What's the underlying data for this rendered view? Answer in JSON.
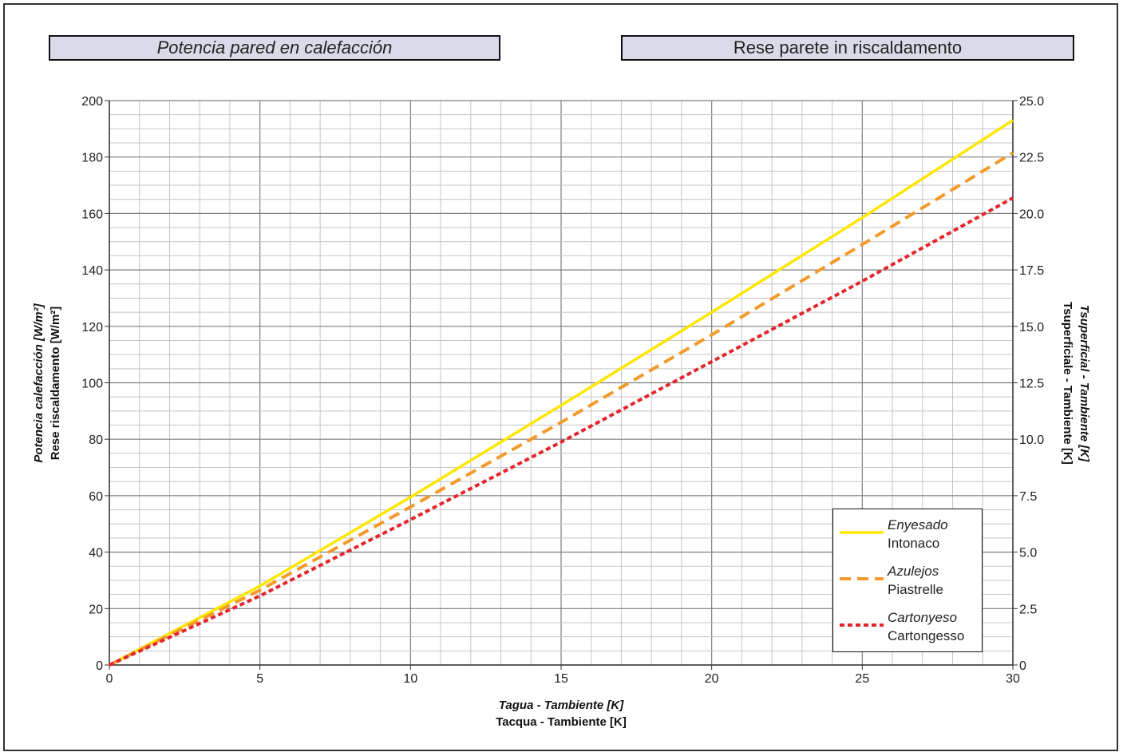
{
  "titles": {
    "left": "Potencia pared en calefacción",
    "right": "Rese parete in riscaldamento"
  },
  "axes": {
    "x_label_es": "Tagua - Tambiente [K]",
    "x_label_it": "Tacqua - Tambiente [K]",
    "y_left_label_es": "Potencia calefacción [W/m²]",
    "y_left_label_it": "Rese riscaldamento [W/m²]",
    "y_right_label_es": "Tsuperficial - Tambiente [K]",
    "y_right_label_it": "Tsuperficiale - Tambiente [K]"
  },
  "colors": {
    "enyesado": "#ffe600",
    "azulejos": "#f39a2b",
    "cartonyeso": "#e5242b",
    "grid_major": "#7d7d7d",
    "grid_minor": "#c4c4c4"
  },
  "chart_data": {
    "type": "line",
    "xlim": [
      0,
      30
    ],
    "ylim": [
      0,
      200
    ],
    "y2lim": [
      0,
      25
    ],
    "x_ticks": [
      0,
      5,
      10,
      15,
      20,
      25,
      30
    ],
    "y_ticks": [
      0,
      20,
      40,
      60,
      80,
      100,
      120,
      140,
      160,
      180,
      200
    ],
    "y2_ticks": [
      "0",
      "2.5",
      "5.0",
      "7.5",
      "10.0",
      "12.5",
      "15.0",
      "17.5",
      "20.0",
      "22.5",
      "25.0"
    ],
    "grid": true,
    "legend_position": "bottom-right",
    "series": [
      {
        "name_es": "Enyesado",
        "name_it": "Intonaco",
        "style": "solid",
        "points": [
          [
            0,
            0
          ],
          [
            5,
            28
          ],
          [
            10,
            59.5
          ],
          [
            15,
            92
          ],
          [
            20,
            125
          ],
          [
            25,
            158.5
          ],
          [
            30,
            193
          ]
        ]
      },
      {
        "name_es": "Azulejos",
        "name_it": "Piastrelle",
        "style": "dashed",
        "points": [
          [
            0,
            0
          ],
          [
            5,
            26.5
          ],
          [
            10,
            56
          ],
          [
            15,
            86
          ],
          [
            20,
            117
          ],
          [
            25,
            149
          ],
          [
            30,
            181.5
          ]
        ]
      },
      {
        "name_es": "Cartonyeso",
        "name_it": "Cartongesso",
        "style": "dotted",
        "points": [
          [
            0,
            0
          ],
          [
            5,
            24.5
          ],
          [
            10,
            51.5
          ],
          [
            15,
            79
          ],
          [
            20,
            107.5
          ],
          [
            25,
            136
          ],
          [
            30,
            165.5
          ]
        ]
      }
    ]
  }
}
